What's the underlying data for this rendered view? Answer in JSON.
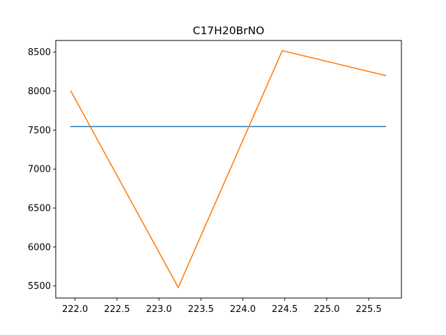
{
  "chart_data": {
    "type": "line",
    "title": "C17H20BrNO",
    "xlabel": "",
    "ylabel": "",
    "xlim": [
      221.77,
      225.89
    ],
    "ylim": [
      5345,
      8650
    ],
    "x_ticks": [
      222.0,
      222.5,
      223.0,
      223.5,
      224.0,
      224.5,
      225.0,
      225.5
    ],
    "x_tick_labels": [
      "222.0",
      "222.5",
      "223.0",
      "223.5",
      "224.0",
      "224.5",
      "225.0",
      "225.5"
    ],
    "y_ticks": [
      5500,
      6000,
      6500,
      7000,
      7500,
      8000,
      8500
    ],
    "y_tick_labels": [
      "5500",
      "6000",
      "6500",
      "7000",
      "7500",
      "8000",
      "8500"
    ],
    "grid": false,
    "series": [
      {
        "color": "#1f77b4",
        "x": [
          221.95,
          225.7
        ],
        "y": [
          7545,
          7545
        ]
      },
      {
        "color": "#ff7f0e",
        "x": [
          221.95,
          223.23,
          224.47,
          225.7
        ],
        "y": [
          8000,
          5480,
          8520,
          8200
        ]
      }
    ]
  }
}
